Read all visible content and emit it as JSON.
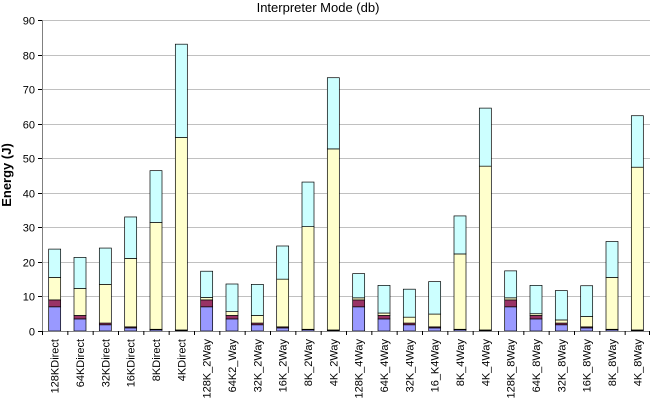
{
  "chart_data": {
    "type": "bar",
    "stacked": true,
    "title": "Interpreter Mode (db)",
    "xlabel": "",
    "ylabel": "Energy (J)",
    "ylim": [
      0,
      90
    ],
    "yticks": [
      0,
      10,
      20,
      30,
      40,
      50,
      60,
      70,
      80,
      90
    ],
    "grid": true,
    "legend": "none",
    "categories": [
      "128KDirect",
      "64KDirect",
      "32KDirect",
      "16KDirect",
      "8KDirect",
      "4KDirect",
      "128K_2Way",
      "64K2_Way",
      "32K_2Way",
      "16K_2Way",
      "8K_2Way",
      "4K_2Way",
      "128K_4Way",
      "64K_4Way",
      "32K_4Way",
      "16_K4Way",
      "8K_4Way",
      "4K_4Way",
      "128K_8Way",
      "64K_8Way",
      "32K_8Way",
      "16K_8Way",
      "8K_8Way",
      "4K_8Way"
    ],
    "series": [
      {
        "color": "#9999ff",
        "values": [
          7.0,
          3.5,
          1.8,
          0.9,
          0.4,
          0.2,
          7.0,
          3.5,
          1.8,
          0.9,
          0.4,
          0.2,
          7.0,
          3.5,
          1.8,
          0.9,
          0.4,
          0.2,
          7.0,
          3.5,
          1.8,
          0.9,
          0.4,
          0.2
        ]
      },
      {
        "color": "#993366",
        "values": [
          2.0,
          1.0,
          0.5,
          0.3,
          0.1,
          0.1,
          2.0,
          1.0,
          0.5,
          0.3,
          0.1,
          0.1,
          2.0,
          1.0,
          0.5,
          0.3,
          0.1,
          0.1,
          2.0,
          1.0,
          0.5,
          0.3,
          0.1,
          0.1
        ]
      },
      {
        "color": "#ffffcc",
        "values": [
          6.5,
          7.8,
          11.2,
          19.8,
          30.9,
          55.7,
          0.7,
          1.1,
          2.2,
          13.8,
          29.7,
          52.4,
          0.6,
          0.7,
          1.7,
          3.7,
          21.8,
          47.4,
          0.6,
          0.5,
          0.9,
          3.0,
          15.0,
          47.1
        ]
      },
      {
        "color": "#ccffff",
        "values": [
          8.2,
          9.0,
          10.5,
          12.0,
          15.0,
          27.0,
          7.6,
          8.0,
          9.0,
          9.6,
          12.9,
          20.6,
          7.0,
          8.0,
          8.1,
          9.4,
          11.0,
          16.8,
          7.8,
          8.2,
          8.5,
          8.9,
          10.4,
          14.9
        ]
      }
    ]
  }
}
